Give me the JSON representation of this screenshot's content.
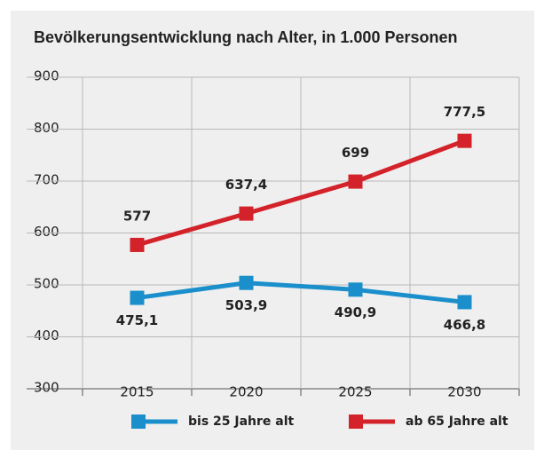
{
  "chart_data": {
    "type": "line",
    "title": "Bevölkerungsentwicklung nach Alter, in 1.000 Personen",
    "categories": [
      "2015",
      "2020",
      "2025",
      "2030"
    ],
    "series": [
      {
        "name": "bis 25 Jahre alt",
        "color": "#1a8fcb",
        "values": [
          475.1,
          503.9,
          490.9,
          466.8
        ],
        "value_labels": [
          "475,1",
          "503,9",
          "490,9",
          "466,8"
        ]
      },
      {
        "name": "ab 65 Jahre alt",
        "color": "#d3222a",
        "values": [
          577,
          637.4,
          699,
          777.5
        ],
        "value_labels": [
          "577",
          "637,4",
          "699",
          "777,5"
        ]
      }
    ],
    "ylim": [
      300,
      900
    ],
    "yticks": [
      300,
      400,
      500,
      600,
      700,
      800,
      900
    ],
    "grid": true
  }
}
